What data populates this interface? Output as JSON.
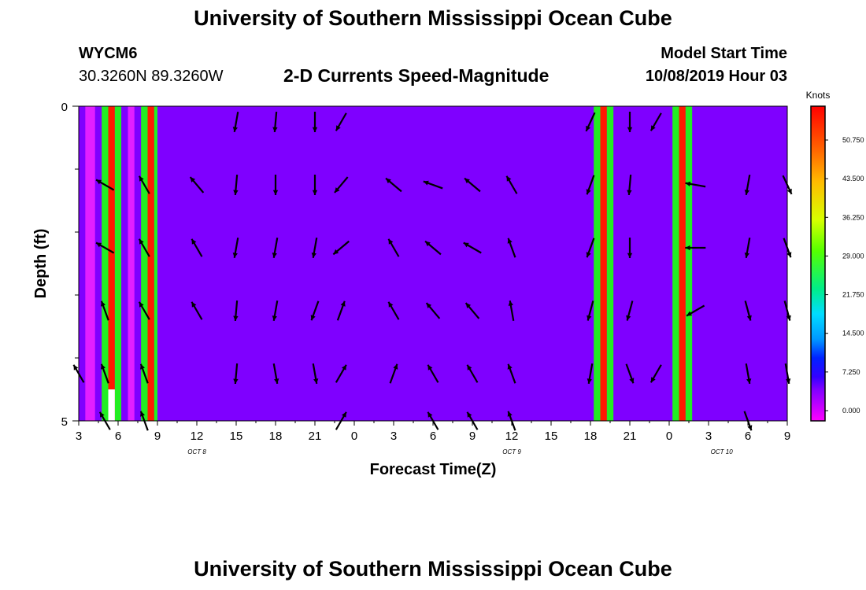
{
  "title_top": "University of Southern Mississippi Ocean Cube",
  "title_bottom": "University of Southern Mississippi Ocean Cube",
  "station": {
    "id": "WYCM6",
    "coords": "30.3260N 89.3260W"
  },
  "plot_title": "2-D Currents Speed-Magnitude",
  "model_start": {
    "label": "Model Start Time",
    "value": "10/08/2019 Hour 03"
  },
  "colors": {
    "background_band": "#7f00ff",
    "band_green": "#22ee22",
    "band_red": "#ff1a00",
    "band_magenta": "#e21fff"
  },
  "chart_data": {
    "type": "heatmap",
    "title": "2-D Currents Speed-Magnitude",
    "xlabel": "Forecast Time(Z)",
    "ylabel": "Depth (ft)",
    "x_ticks": [
      "3",
      "6",
      "9",
      "12",
      "15",
      "18",
      "21",
      "0",
      "3",
      "6",
      "9",
      "12",
      "15",
      "18",
      "21",
      "0",
      "3",
      "6",
      "9"
    ],
    "date_labels": [
      {
        "text": "OCT 8",
        "hour": 12
      },
      {
        "text": "OCT 9",
        "hour": 36
      },
      {
        "text": "OCT 10",
        "hour": 52
      }
    ],
    "xlim_hours": [
      3,
      57
    ],
    "ylim_ft": [
      0,
      5
    ],
    "y_ticks": [
      "0",
      "5"
    ],
    "y_minor_ticks_ft": [
      1,
      2,
      3,
      4
    ],
    "colorbar": {
      "units": "Knots",
      "labels": [
        "50.750",
        "43.500",
        "36.250",
        "29.000",
        "21.750",
        "14.500",
        "7.250",
        "0.000"
      ]
    },
    "high_speed_bands": [
      {
        "start_h": 3.0,
        "end_h": 3.5,
        "color": "purple"
      },
      {
        "start_h": 3.5,
        "end_h": 4.25,
        "color": "magenta"
      },
      {
        "start_h": 4.25,
        "end_h": 4.75,
        "color": "purple"
      },
      {
        "start_h": 4.75,
        "end_h": 5.25,
        "color": "green"
      },
      {
        "start_h": 5.25,
        "end_h": 5.75,
        "color": "red"
      },
      {
        "start_h": 5.75,
        "end_h": 6.25,
        "color": "green"
      },
      {
        "start_h": 6.25,
        "end_h": 6.75,
        "color": "purple"
      },
      {
        "start_h": 6.75,
        "end_h": 7.25,
        "color": "magenta"
      },
      {
        "start_h": 7.25,
        "end_h": 7.75,
        "color": "purple"
      },
      {
        "start_h": 7.75,
        "end_h": 8.25,
        "color": "green"
      },
      {
        "start_h": 8.25,
        "end_h": 8.75,
        "color": "red"
      },
      {
        "start_h": 8.75,
        "end_h": 9.0,
        "color": "green"
      },
      {
        "start_h": 42.25,
        "end_h": 42.75,
        "color": "green"
      },
      {
        "start_h": 42.75,
        "end_h": 43.25,
        "color": "red"
      },
      {
        "start_h": 43.25,
        "end_h": 43.75,
        "color": "green"
      },
      {
        "start_h": 48.25,
        "end_h": 48.75,
        "color": "green"
      },
      {
        "start_h": 48.75,
        "end_h": 49.25,
        "color": "red"
      },
      {
        "start_h": 49.25,
        "end_h": 49.75,
        "color": "green"
      }
    ],
    "vector_columns_hours": [
      3,
      5,
      8,
      12,
      15,
      18,
      21,
      23,
      27,
      30,
      33,
      36,
      39,
      42,
      45,
      47,
      50,
      54,
      57
    ],
    "vector_rows_depth_ft": [
      0.25,
      1.25,
      2.25,
      3.25,
      4.25,
      5.0
    ],
    "vector_directions_deg": [
      [
        0,
        0,
        0,
        0,
        190,
        185,
        180,
        210,
        0,
        0,
        0,
        0,
        0,
        205,
        180,
        210,
        0,
        0,
        0
      ],
      [
        0,
        300,
        330,
        320,
        185,
        180,
        180,
        220,
        310,
        290,
        310,
        330,
        0,
        200,
        185,
        0,
        280,
        190,
        155
      ],
      [
        0,
        300,
        330,
        330,
        190,
        190,
        190,
        230,
        330,
        310,
        300,
        340,
        0,
        200,
        180,
        0,
        270,
        190,
        160
      ],
      [
        0,
        340,
        330,
        330,
        185,
        190,
        200,
        20,
        330,
        320,
        320,
        350,
        0,
        195,
        195,
        0,
        240,
        165,
        165
      ],
      [
        330,
        340,
        340,
        0,
        185,
        170,
        170,
        30,
        20,
        330,
        330,
        340,
        0,
        190,
        160,
        210,
        0,
        170,
        170
      ],
      [
        0,
        330,
        340,
        0,
        0,
        0,
        0,
        30,
        0,
        330,
        330,
        340,
        0,
        0,
        0,
        0,
        0,
        160,
        0
      ]
    ]
  }
}
